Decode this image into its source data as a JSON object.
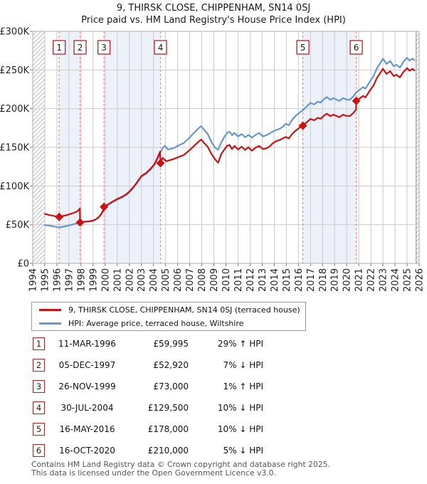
{
  "title": {
    "line1": "9, THIRSK CLOSE, CHIPPENHAM, SN14 0SJ",
    "line2": "Price paid vs. HM Land Registry's House Price Index (HPI)"
  },
  "chart_data": {
    "type": "line",
    "unit": "GBP_thousands",
    "x_axis": {
      "range": [
        1994,
        2026
      ],
      "tick_step": 1
    },
    "y_axis": {
      "ticks_k": [
        0,
        50,
        100,
        150,
        200,
        250,
        300
      ],
      "labels": [
        "£0",
        "£50K",
        "£100K",
        "£150K",
        "£200K",
        "£250K",
        "£300K"
      ],
      "range_k": [
        0,
        300
      ]
    },
    "grid": true,
    "data_start": 1995.0,
    "data_end": 2025.6,
    "no_data_hatch": [
      [
        1994.0,
        1995.0
      ],
      [
        2025.75,
        2026.0
      ]
    ],
    "ownership_bands": [
      [
        1996.19,
        1997.92
      ],
      [
        1999.9,
        2004.58
      ],
      [
        2016.37,
        2020.79
      ]
    ],
    "band_color": "#edf1fa",
    "sale_line_color": "#ef8a8a",
    "marker_box_color": "#b22222",
    "series": [
      {
        "name": "9, THIRSK CLOSE, CHIPPENHAM, SN14 0SJ (terraced house)",
        "color": "#cc1111",
        "points": [
          [
            1995.0,
            64
          ],
          [
            1995.3,
            62.8
          ],
          [
            1995.6,
            61.8
          ],
          [
            1995.9,
            60.8
          ],
          [
            1996.19,
            60
          ],
          [
            1996.5,
            61.2
          ],
          [
            1996.8,
            62.3
          ],
          [
            1997.1,
            63.8
          ],
          [
            1997.4,
            65.3
          ],
          [
            1997.7,
            67.3
          ],
          [
            1997.9,
            70.8
          ],
          [
            1997.92,
            52.9
          ],
          [
            1998.2,
            53.6
          ],
          [
            1998.5,
            54
          ],
          [
            1998.8,
            54.4
          ],
          [
            1999.1,
            55.8
          ],
          [
            1999.4,
            58.5
          ],
          [
            1999.65,
            63
          ],
          [
            1999.88,
            69.5
          ],
          [
            1999.9,
            73
          ],
          [
            2000.2,
            75.8
          ],
          [
            2000.6,
            79.8
          ],
          [
            2001.0,
            83.3
          ],
          [
            2001.4,
            86
          ],
          [
            2001.8,
            90
          ],
          [
            2002.2,
            96
          ],
          [
            2002.6,
            104
          ],
          [
            2003.0,
            113
          ],
          [
            2003.4,
            117
          ],
          [
            2003.8,
            123
          ],
          [
            2004.1,
            129
          ],
          [
            2004.35,
            137
          ],
          [
            2004.55,
            144.5
          ],
          [
            2004.58,
            129.5
          ],
          [
            2004.75,
            136.5
          ],
          [
            2005.05,
            132
          ],
          [
            2005.3,
            133.2
          ],
          [
            2005.6,
            134.5
          ],
          [
            2006.0,
            137
          ],
          [
            2006.5,
            140
          ],
          [
            2007.0,
            146.5
          ],
          [
            2007.4,
            152.5
          ],
          [
            2007.7,
            157
          ],
          [
            2007.95,
            160
          ],
          [
            2008.2,
            155.5
          ],
          [
            2008.5,
            150.5
          ],
          [
            2008.8,
            141.5
          ],
          [
            2009.1,
            134.5
          ],
          [
            2009.35,
            130
          ],
          [
            2009.6,
            141
          ],
          [
            2009.85,
            147
          ],
          [
            2010.1,
            152
          ],
          [
            2010.3,
            153
          ],
          [
            2010.5,
            147.8
          ],
          [
            2010.7,
            151.8
          ],
          [
            2011.0,
            147.2
          ],
          [
            2011.3,
            150.9
          ],
          [
            2011.6,
            146.6
          ],
          [
            2011.85,
            150.2
          ],
          [
            2012.15,
            145.7
          ],
          [
            2012.45,
            149.5
          ],
          [
            2012.75,
            151.8
          ],
          [
            2013.05,
            147.8
          ],
          [
            2013.35,
            148.7
          ],
          [
            2013.6,
            151
          ],
          [
            2013.85,
            154.9
          ],
          [
            2014.15,
            158
          ],
          [
            2014.45,
            159.5
          ],
          [
            2014.7,
            161.5
          ],
          [
            2014.95,
            163.5
          ],
          [
            2015.2,
            161.5
          ],
          [
            2015.5,
            167.5
          ],
          [
            2015.8,
            172
          ],
          [
            2016.1,
            175.5
          ],
          [
            2016.37,
            178
          ],
          [
            2016.7,
            182.7
          ],
          [
            2017.0,
            186.7
          ],
          [
            2017.3,
            185
          ],
          [
            2017.6,
            188.2
          ],
          [
            2017.85,
            187
          ],
          [
            2018.1,
            190.8
          ],
          [
            2018.35,
            193.5
          ],
          [
            2018.65,
            190.3
          ],
          [
            2018.9,
            192.3
          ],
          [
            2019.15,
            190.5
          ],
          [
            2019.4,
            189
          ],
          [
            2019.7,
            192.3
          ],
          [
            2019.95,
            190.8
          ],
          [
            2020.25,
            190.3
          ],
          [
            2020.55,
            194.4
          ],
          [
            2020.78,
            199
          ],
          [
            2020.79,
            210
          ],
          [
            2021.1,
            213.5
          ],
          [
            2021.35,
            216.5
          ],
          [
            2021.55,
            214.5
          ],
          [
            2021.9,
            223
          ],
          [
            2022.2,
            229.5
          ],
          [
            2022.5,
            239.5
          ],
          [
            2022.75,
            245.5
          ],
          [
            2023.0,
            251.5
          ],
          [
            2023.3,
            245
          ],
          [
            2023.6,
            248.5
          ],
          [
            2023.9,
            242
          ],
          [
            2024.1,
            244
          ],
          [
            2024.4,
            240.5
          ],
          [
            2024.7,
            247.5
          ],
          [
            2025.0,
            252.5
          ],
          [
            2025.2,
            249
          ],
          [
            2025.45,
            251.5
          ],
          [
            2025.6,
            249.5
          ]
        ]
      },
      {
        "name": "HPI: Average price, terraced house, Wiltshire",
        "color": "#6698cb",
        "points": [
          [
            1995.0,
            49.5
          ],
          [
            1995.3,
            48.9
          ],
          [
            1995.6,
            48.2
          ],
          [
            1995.9,
            47.2
          ],
          [
            1996.19,
            46.5
          ],
          [
            1996.5,
            47.4
          ],
          [
            1996.8,
            48.3
          ],
          [
            1997.1,
            49.4
          ],
          [
            1997.4,
            50.6
          ],
          [
            1997.7,
            52.1
          ],
          [
            1997.92,
            53
          ],
          [
            1998.2,
            53.8
          ],
          [
            1998.5,
            54.2
          ],
          [
            1998.8,
            54.7
          ],
          [
            1999.1,
            56
          ],
          [
            1999.4,
            58.8
          ],
          [
            1999.65,
            63.3
          ],
          [
            1999.9,
            71.5
          ],
          [
            2000.2,
            75
          ],
          [
            2000.6,
            79
          ],
          [
            2001.0,
            82.5
          ],
          [
            2001.4,
            85.1
          ],
          [
            2001.8,
            89.1
          ],
          [
            2002.2,
            95
          ],
          [
            2002.6,
            103
          ],
          [
            2003.0,
            112
          ],
          [
            2003.4,
            116
          ],
          [
            2003.8,
            122
          ],
          [
            2004.1,
            127.8
          ],
          [
            2004.35,
            135.5
          ],
          [
            2004.58,
            143.5
          ],
          [
            2004.8,
            150
          ],
          [
            2004.95,
            151.8
          ],
          [
            2005.2,
            147.3
          ],
          [
            2005.45,
            148
          ],
          [
            2005.7,
            149.3
          ],
          [
            2006.0,
            151.8
          ],
          [
            2006.5,
            155.5
          ],
          [
            2007.0,
            162.8
          ],
          [
            2007.4,
            169.5
          ],
          [
            2007.7,
            174.3
          ],
          [
            2007.95,
            177.3
          ],
          [
            2008.2,
            172.5
          ],
          [
            2008.5,
            167
          ],
          [
            2008.8,
            157
          ],
          [
            2009.1,
            149.5
          ],
          [
            2009.35,
            146.8
          ],
          [
            2009.6,
            156
          ],
          [
            2009.85,
            163
          ],
          [
            2010.1,
            168.9
          ],
          [
            2010.3,
            170.2
          ],
          [
            2010.5,
            165.6
          ],
          [
            2010.7,
            168.7
          ],
          [
            2011.0,
            164.1
          ],
          [
            2011.3,
            167.2
          ],
          [
            2011.6,
            163
          ],
          [
            2011.85,
            166.1
          ],
          [
            2012.15,
            162.6
          ],
          [
            2012.45,
            166
          ],
          [
            2012.75,
            168.7
          ],
          [
            2013.05,
            164.1
          ],
          [
            2013.35,
            165.6
          ],
          [
            2013.6,
            167.8
          ],
          [
            2013.85,
            170.2
          ],
          [
            2014.15,
            172.3
          ],
          [
            2014.45,
            174
          ],
          [
            2014.7,
            176.5
          ],
          [
            2014.95,
            180.5
          ],
          [
            2015.2,
            178.5
          ],
          [
            2015.5,
            186
          ],
          [
            2015.8,
            191
          ],
          [
            2016.1,
            195
          ],
          [
            2016.37,
            198
          ],
          [
            2016.7,
            203
          ],
          [
            2017.0,
            207.5
          ],
          [
            2017.3,
            205.5
          ],
          [
            2017.6,
            209.1
          ],
          [
            2017.85,
            207.8
          ],
          [
            2018.1,
            212
          ],
          [
            2018.35,
            215
          ],
          [
            2018.65,
            211.4
          ],
          [
            2018.9,
            213.7
          ],
          [
            2019.15,
            211.7
          ],
          [
            2019.4,
            210
          ],
          [
            2019.7,
            213.7
          ],
          [
            2019.95,
            212
          ],
          [
            2020.25,
            211.4
          ],
          [
            2020.55,
            216
          ],
          [
            2020.79,
            221
          ],
          [
            2021.1,
            224.7
          ],
          [
            2021.35,
            227.9
          ],
          [
            2021.55,
            225.8
          ],
          [
            2021.9,
            234.7
          ],
          [
            2022.2,
            241.6
          ],
          [
            2022.5,
            252.1
          ],
          [
            2022.75,
            258.4
          ],
          [
            2023.0,
            264.7
          ],
          [
            2023.3,
            257.9
          ],
          [
            2023.6,
            261.6
          ],
          [
            2023.9,
            254.7
          ],
          [
            2024.1,
            256.8
          ],
          [
            2024.4,
            253.2
          ],
          [
            2024.7,
            260.5
          ],
          [
            2025.0,
            265.8
          ],
          [
            2025.2,
            262.1
          ],
          [
            2025.45,
            264.7
          ],
          [
            2025.6,
            262.6
          ]
        ]
      }
    ],
    "sales": [
      {
        "num": "1",
        "year": 1996.19,
        "price_k": 60.0,
        "date": "11-MAR-1996",
        "price": "£59,995",
        "vs_hpi": "29% ↑ HPI"
      },
      {
        "num": "2",
        "year": 1997.92,
        "price_k": 52.92,
        "date": "05-DEC-1997",
        "price": "£52,920",
        "vs_hpi": "7% ↓ HPI"
      },
      {
        "num": "3",
        "year": 1999.9,
        "price_k": 73.0,
        "date": "26-NOV-1999",
        "price": "£73,000",
        "vs_hpi": "1% ↑ HPI"
      },
      {
        "num": "4",
        "year": 2004.58,
        "price_k": 129.5,
        "date": "30-JUL-2004",
        "price": "£129,500",
        "vs_hpi": "10% ↓ HPI"
      },
      {
        "num": "5",
        "year": 2016.37,
        "price_k": 178.0,
        "date": "16-MAY-2016",
        "price": "£178,000",
        "vs_hpi": "10% ↓ HPI"
      },
      {
        "num": "6",
        "year": 2020.79,
        "price_k": 210.0,
        "date": "16-OCT-2020",
        "price": "£210,000",
        "vs_hpi": "5% ↓ HPI"
      }
    ],
    "legend_position": "bottom-left"
  },
  "footer": {
    "line1": "Contains HM Land Registry data © Crown copyright and database right 2025.",
    "line2": "This data is licensed under the Open Government Licence v3.0."
  }
}
